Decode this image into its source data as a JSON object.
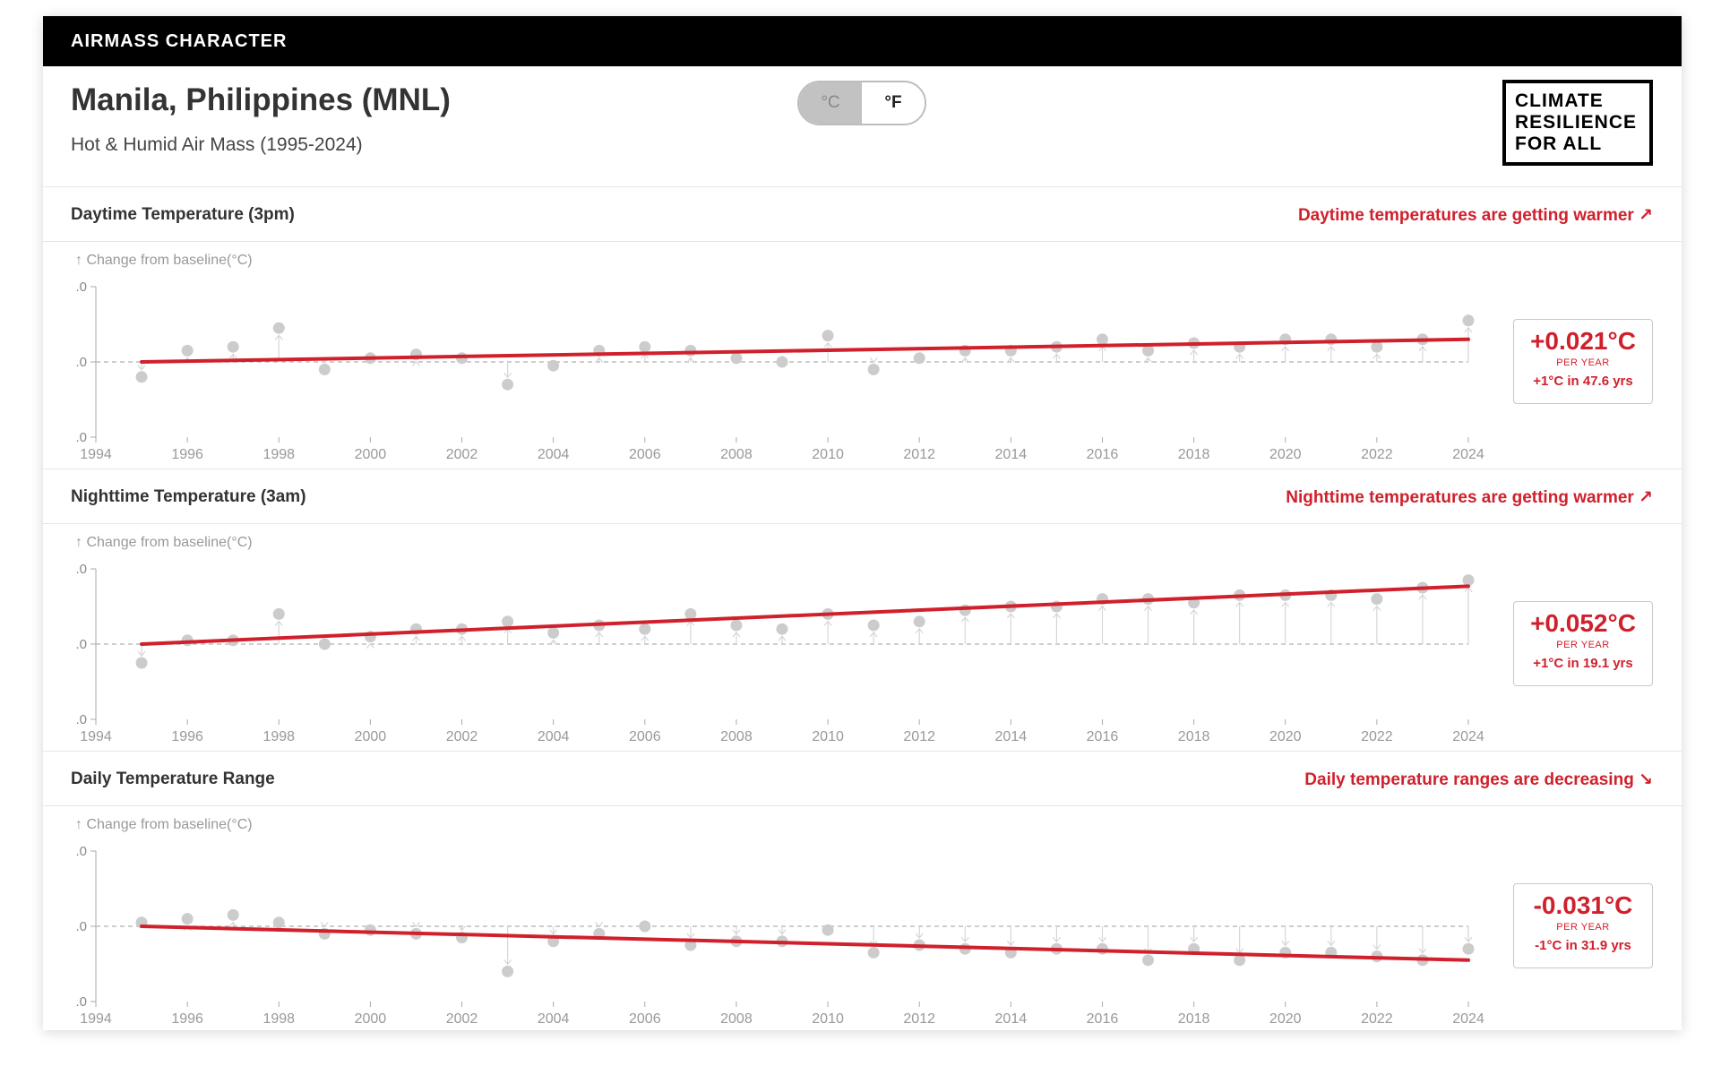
{
  "topbar": {
    "title": "AIRMASS CHARACTER"
  },
  "header": {
    "city": "Manila, Philippines (MNL)",
    "subtitle": "Hot & Humid Air Mass (1995-2024)",
    "unit_c": "°C",
    "unit_f": "°F",
    "selected_unit": "°C"
  },
  "logo": {
    "lines": [
      "CLIMATE",
      "RESILIENCE",
      "FOR ALL"
    ]
  },
  "colors": {
    "accent": "#d0202c",
    "point": "#cccccc",
    "baseline": "#bdbdbd",
    "header_bg": "#000000"
  },
  "sections": [
    {
      "title": "Daytime Temperature (3pm)",
      "trend_text": "Daytime temperatures are getting warmer ↗",
      "stat": {
        "value": "+0.021°C",
        "unit": "PER YEAR",
        "eta": "+1°C in 47.6 yrs"
      }
    },
    {
      "title": "Nighttime Temperature (3am)",
      "trend_text": "Nighttime temperatures are getting warmer ↗",
      "stat": {
        "value": "+0.052°C",
        "unit": "PER YEAR",
        "eta": "+1°C in 19.1 yrs"
      }
    },
    {
      "title": "Daily Temperature Range",
      "trend_text": "Daily temperature ranges are decreasing ↘",
      "stat": {
        "value": "-0.031°C",
        "unit": "PER YEAR",
        "eta": "-1°C in 31.9 yrs"
      }
    }
  ],
  "chart_data": [
    {
      "type": "scatter",
      "title": "Daytime Temperature (3pm)",
      "ylabel": "↑ Change from baseline(°C)",
      "ytick_labels": [
        ".0",
        ".0",
        ".0"
      ],
      "xlim": [
        1994,
        2024
      ],
      "ylim": [
        -1,
        1
      ],
      "xticks": [
        1994,
        1996,
        1998,
        2000,
        2002,
        2004,
        2006,
        2008,
        2010,
        2012,
        2014,
        2016,
        2018,
        2020,
        2022,
        2024
      ],
      "x": [
        1995,
        1996,
        1997,
        1998,
        1999,
        2000,
        2001,
        2002,
        2003,
        2004,
        2005,
        2006,
        2007,
        2008,
        2009,
        2010,
        2011,
        2012,
        2013,
        2014,
        2015,
        2016,
        2017,
        2018,
        2019,
        2020,
        2021,
        2022,
        2023,
        2024
      ],
      "y": [
        -0.2,
        0.15,
        0.2,
        0.45,
        -0.1,
        0.05,
        0.1,
        0.05,
        -0.3,
        -0.05,
        0.15,
        0.2,
        0.15,
        0.05,
        0.0,
        0.35,
        -0.1,
        0.05,
        0.15,
        0.15,
        0.2,
        0.3,
        0.15,
        0.25,
        0.2,
        0.3,
        0.3,
        0.2,
        0.3,
        0.55
      ],
      "trend": {
        "start": [
          1995,
          0.0
        ],
        "end": [
          2024,
          0.3
        ]
      },
      "baseline": 0
    },
    {
      "type": "scatter",
      "title": "Nighttime Temperature (3am)",
      "ylabel": "↑ Change from baseline(°C)",
      "ytick_labels": [
        ".0",
        ".0",
        ".0"
      ],
      "xlim": [
        1994,
        2024
      ],
      "ylim": [
        -1,
        1
      ],
      "xticks": [
        1994,
        1996,
        1998,
        2000,
        2002,
        2004,
        2006,
        2008,
        2010,
        2012,
        2014,
        2016,
        2018,
        2020,
        2022,
        2024
      ],
      "x": [
        1995,
        1996,
        1997,
        1998,
        1999,
        2000,
        2001,
        2002,
        2003,
        2004,
        2005,
        2006,
        2007,
        2008,
        2009,
        2010,
        2011,
        2012,
        2013,
        2014,
        2015,
        2016,
        2017,
        2018,
        2019,
        2020,
        2021,
        2022,
        2023,
        2024
      ],
      "y": [
        -0.25,
        0.05,
        0.05,
        0.4,
        0.0,
        0.1,
        0.2,
        0.2,
        0.3,
        0.15,
        0.25,
        0.2,
        0.4,
        0.25,
        0.2,
        0.4,
        0.25,
        0.3,
        0.45,
        0.5,
        0.5,
        0.6,
        0.6,
        0.55,
        0.65,
        0.65,
        0.65,
        0.6,
        0.75,
        0.85
      ],
      "trend": {
        "start": [
          1995,
          0.0
        ],
        "end": [
          2024,
          0.77
        ]
      },
      "baseline": 0
    },
    {
      "type": "scatter",
      "title": "Daily Temperature Range",
      "ylabel": "↑ Change from baseline(°C)",
      "ytick_labels": [
        ".0",
        ".0",
        ".0"
      ],
      "xlim": [
        1994,
        2024
      ],
      "ylim": [
        -1,
        1
      ],
      "xticks": [
        1994,
        1996,
        1998,
        2000,
        2002,
        2004,
        2006,
        2008,
        2010,
        2012,
        2014,
        2016,
        2018,
        2020,
        2022,
        2024
      ],
      "x": [
        1995,
        1996,
        1997,
        1998,
        1999,
        2000,
        2001,
        2002,
        2003,
        2004,
        2005,
        2006,
        2007,
        2008,
        2009,
        2010,
        2011,
        2012,
        2013,
        2014,
        2015,
        2016,
        2017,
        2018,
        2019,
        2020,
        2021,
        2022,
        2023,
        2024
      ],
      "y": [
        0.05,
        0.1,
        0.15,
        0.05,
        -0.1,
        -0.05,
        -0.1,
        -0.15,
        -0.6,
        -0.2,
        -0.1,
        0.0,
        -0.25,
        -0.2,
        -0.2,
        -0.05,
        -0.35,
        -0.25,
        -0.3,
        -0.35,
        -0.3,
        -0.3,
        -0.45,
        -0.3,
        -0.45,
        -0.35,
        -0.35,
        -0.4,
        -0.45,
        -0.3
      ],
      "trend": {
        "start": [
          1995,
          0.0
        ],
        "end": [
          2024,
          -0.45
        ]
      },
      "baseline": 0
    }
  ]
}
